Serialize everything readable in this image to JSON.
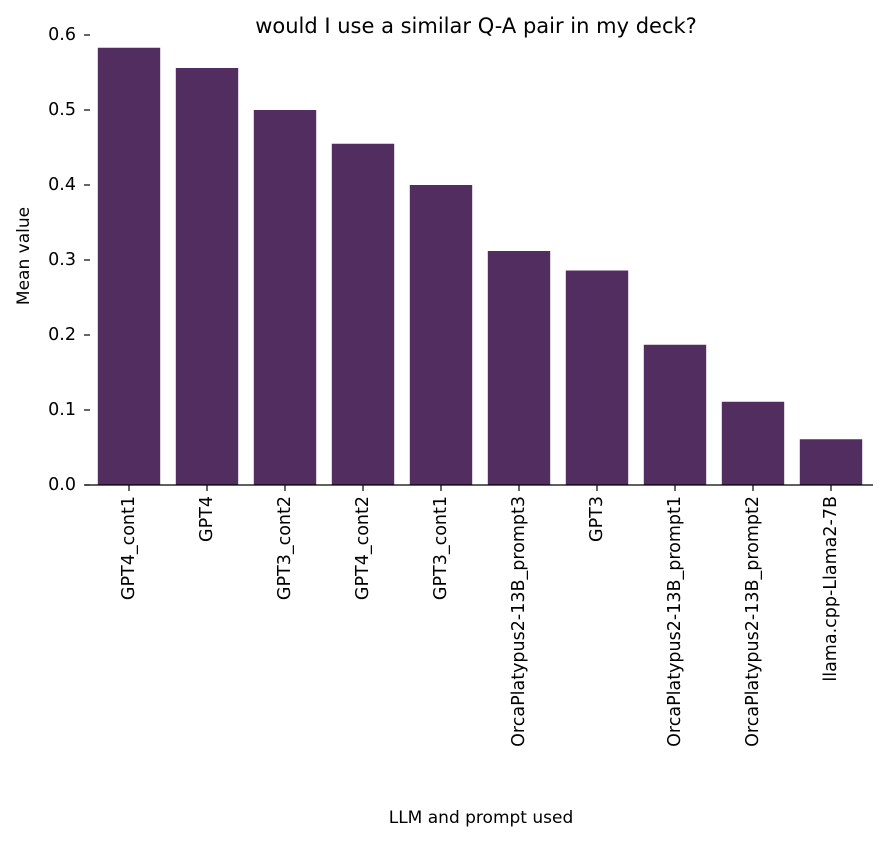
{
  "chart_data": {
    "type": "bar",
    "title": "would I use a similar Q-A pair in my deck?",
    "xlabel": "LLM and prompt used",
    "ylabel": "Mean value",
    "categories": [
      "GPT4_cont1",
      "GPT4",
      "GPT3_cont2",
      "GPT4_cont2",
      "GPT3_cont1",
      "OrcaPlatypus2-13B_prompt3",
      "GPT3",
      "OrcaPlatypus2-13B_prompt1",
      "OrcaPlatypus2-13B_prompt2",
      "llama.cpp-Llama2-7B"
    ],
    "values": [
      0.583,
      0.556,
      0.5,
      0.455,
      0.4,
      0.312,
      0.286,
      0.187,
      0.111,
      0.061
    ],
    "ylim": [
      0,
      0.6
    ],
    "yticks": [
      "0.0",
      "0.1",
      "0.2",
      "0.3",
      "0.4",
      "0.5",
      "0.6"
    ],
    "bar_color": "#522d5f",
    "grid": false,
    "legend": "none"
  }
}
